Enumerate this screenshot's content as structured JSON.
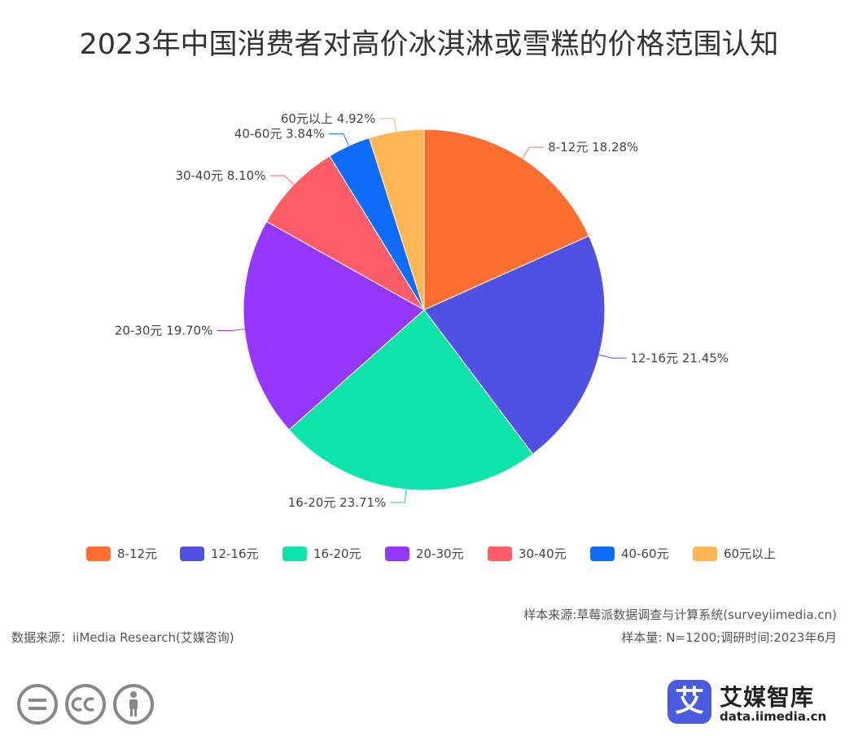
{
  "title": "2023年中国消费者对高价冰淇淋或雪糕的价格范围认知",
  "chart_data": {
    "type": "pie",
    "title": "2023年中国消费者对高价冰淇淋或雪糕的价格范围认知",
    "unit": "%",
    "slices": [
      {
        "name": "8-12元",
        "value": 18.28,
        "label": "8-12元 18.28%",
        "color": "#fe6e30"
      },
      {
        "name": "12-16元",
        "value": 21.45,
        "label": "12-16元 21.45%",
        "color": "#5051e3"
      },
      {
        "name": "16-20元",
        "value": 23.71,
        "label": "16-20元 23.71%",
        "color": "#0ee3ab"
      },
      {
        "name": "20-30元",
        "value": 19.7,
        "label": "20-30元 19.70%",
        "color": "#9537fa"
      },
      {
        "name": "30-40元",
        "value": 8.1,
        "label": "30-40元 8.10%",
        "color": "#fe5c66"
      },
      {
        "name": "40-60元",
        "value": 3.84,
        "label": "40-60元 3.84%",
        "color": "#0e6cf9"
      },
      {
        "name": "60元以上",
        "value": 4.92,
        "label": "60元以上 4.92%",
        "color": "#feb554"
      }
    ],
    "legend_position": "bottom"
  },
  "footer": {
    "data_source": "数据来源：iiMedia Research(艾媒咨询)",
    "sample_source": "样本来源:草莓派数据调查与计算系统(surveyiimedia.cn)",
    "sample_size": "样本量: N=1200;调研时间:2023年6月"
  },
  "brand": {
    "logo_char": "艾",
    "name": "艾媒智库",
    "url": "data.iimedia.cn"
  },
  "icons": [
    "equals-circle-icon",
    "cc-circle-icon",
    "person-circle-icon"
  ]
}
